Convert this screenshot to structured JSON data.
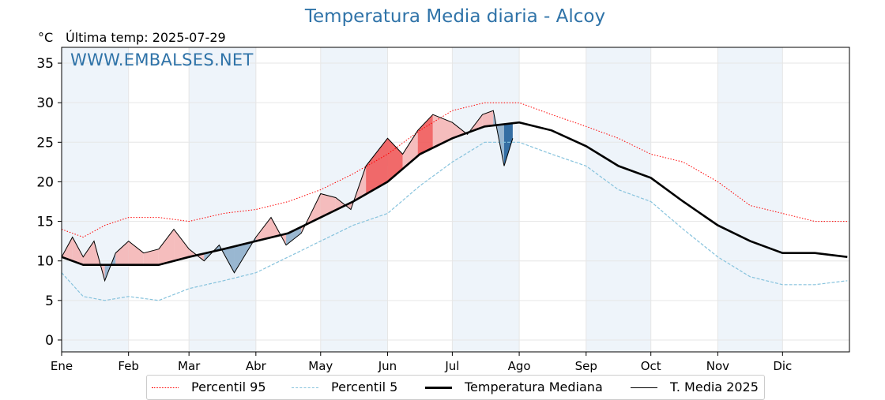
{
  "header": {
    "title": "Temperatura Media diaria - Alcoy",
    "unit": "°C",
    "last_temp": "Última temp: 2025-07-29",
    "watermark": "WWW.EMBALSES.NET"
  },
  "legend": [
    {
      "label": "Percentil 95",
      "color": "#ff0000",
      "style": "dotted"
    },
    {
      "label": "Percentil 5",
      "color": "#87c3dd",
      "style": "dashed"
    },
    {
      "label": "Temperatura Mediana",
      "color": "#000000",
      "style": "thick"
    },
    {
      "label": "T. Media 2025",
      "color": "#000000",
      "style": "thin"
    }
  ],
  "colors": {
    "title": "#2f73a8",
    "p95": "#ff0000",
    "p5": "#87c3dd",
    "above_fill": "#f4b6b6",
    "above_fill_strong": "#f05a5a",
    "below_fill": "#8fb0cc",
    "below_fill_strong": "#1f5f99",
    "month_band": "#eef4fa"
  },
  "chart_data": {
    "type": "line",
    "title": "Temperatura Media diaria - Alcoy",
    "ylabel": "°C",
    "xlabel": "",
    "ylim": [
      -1.5,
      37
    ],
    "yticks": [
      0,
      5,
      10,
      15,
      20,
      25,
      30,
      35
    ],
    "months": [
      "Ene",
      "Feb",
      "Mar",
      "Abr",
      "May",
      "Jun",
      "Jul",
      "Ago",
      "Sep",
      "Oct",
      "Nov",
      "Dic"
    ],
    "month_start_day": [
      0,
      31,
      59,
      90,
      120,
      151,
      181,
      212,
      243,
      273,
      304,
      334
    ],
    "days_in_year": 365,
    "grid": true,
    "legend_position": "bottom",
    "x_day_of_year": [
      0,
      10,
      20,
      31,
      45,
      59,
      75,
      90,
      105,
      120,
      135,
      151,
      166,
      181,
      196,
      212,
      227,
      243,
      258,
      273,
      288,
      304,
      319,
      334,
      349,
      364
    ],
    "series": [
      {
        "name": "Percentil 95",
        "values": [
          14.0,
          13.0,
          14.5,
          15.5,
          15.5,
          15.0,
          16.0,
          16.5,
          17.5,
          19.0,
          21.0,
          23.5,
          26.5,
          29.0,
          30.0,
          30.0,
          28.5,
          27.0,
          25.5,
          23.5,
          22.5,
          20.0,
          17.0,
          16.0,
          15.0,
          15.0
        ]
      },
      {
        "name": "Percentil 5",
        "values": [
          8.5,
          5.5,
          5.0,
          5.5,
          5.0,
          6.5,
          7.5,
          8.5,
          10.5,
          12.5,
          14.5,
          16.0,
          19.5,
          22.5,
          25.0,
          25.0,
          23.5,
          22.0,
          19.0,
          17.5,
          14.0,
          10.5,
          8.0,
          7.0,
          7.0,
          7.5
        ]
      },
      {
        "name": "Temperatura Mediana",
        "values": [
          10.5,
          9.5,
          9.5,
          9.5,
          9.5,
          10.5,
          11.5,
          12.5,
          13.5,
          15.5,
          17.5,
          20.0,
          23.5,
          25.5,
          27.0,
          27.5,
          26.5,
          24.5,
          22.0,
          20.5,
          17.5,
          14.5,
          12.5,
          11.0,
          11.0,
          10.5
        ]
      },
      {
        "name": "T. Media 2025",
        "x_day_of_year": [
          0,
          5,
          10,
          15,
          20,
          25,
          31,
          38,
          45,
          52,
          59,
          66,
          73,
          80,
          90,
          97,
          104,
          111,
          120,
          127,
          134,
          141,
          151,
          158,
          165,
          172,
          181,
          188,
          195,
          200,
          205,
          209
        ],
        "values": [
          10.5,
          13.0,
          10.5,
          12.5,
          7.5,
          11.0,
          12.5,
          11.0,
          11.5,
          14.0,
          11.5,
          10.0,
          12.0,
          8.5,
          13.0,
          15.5,
          12.0,
          13.5,
          18.5,
          18.0,
          16.5,
          22.0,
          25.5,
          23.5,
          26.5,
          28.5,
          27.5,
          26.0,
          28.5,
          29.0,
          22.0,
          25.5
        ]
      }
    ]
  }
}
